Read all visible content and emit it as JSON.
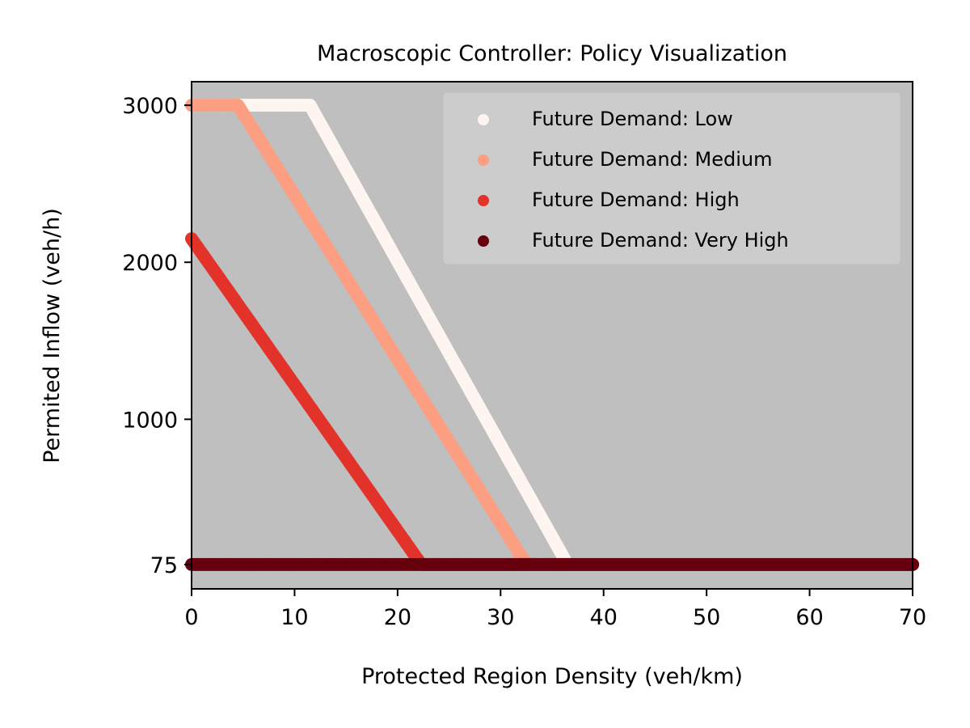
{
  "chart_data": {
    "type": "scatter",
    "title": "Macroscopic Controller: Policy Visualization",
    "xlabel": "Protected Region Density (veh/km)",
    "ylabel": "Permited Inflow (veh/h)",
    "xlim": [
      0,
      70
    ],
    "ylim": [
      -80,
      3150
    ],
    "xticks": [
      0,
      10,
      20,
      30,
      40,
      50,
      60,
      70
    ],
    "yticks": [
      75,
      1000,
      2000,
      3000
    ],
    "grid": false,
    "legend_position": "top-right",
    "series": [
      {
        "name": "Future Demand: Low",
        "color": "#fff5f0",
        "x": [
          0,
          11.5,
          36.5,
          70
        ],
        "y": [
          3000,
          3000,
          75,
          75
        ]
      },
      {
        "name": "Future Demand: Medium",
        "color": "#fb9e81",
        "x": [
          0,
          4.5,
          32.5,
          70
        ],
        "y": [
          3000,
          3000,
          75,
          75
        ]
      },
      {
        "name": "Future Demand: High",
        "color": "#e2322a",
        "x": [
          0,
          22.3,
          70
        ],
        "y": [
          2150,
          75,
          75
        ]
      },
      {
        "name": "Future Demand: Very High",
        "color": "#67000d",
        "x": [
          0,
          70
        ],
        "y": [
          75,
          75
        ]
      }
    ]
  },
  "style": {
    "plot_background": "#bfbfbf",
    "legend_background": "#d0d0d0"
  }
}
